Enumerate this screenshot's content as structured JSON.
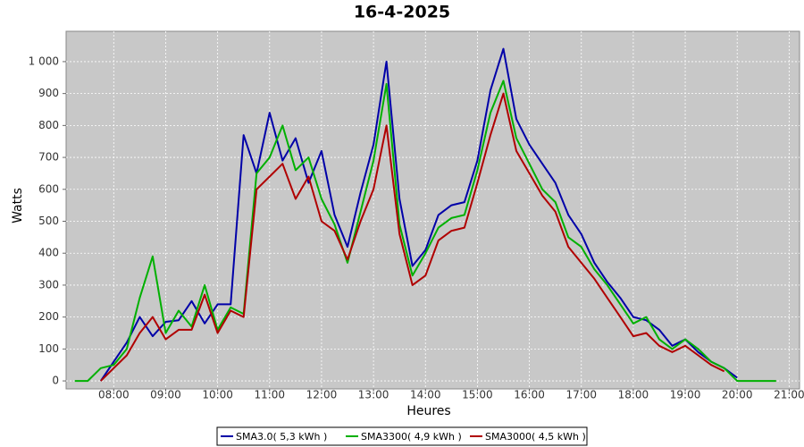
{
  "chart_data": {
    "type": "line",
    "title": "16-4-2025",
    "xlabel": "Heures",
    "ylabel": "Watts",
    "x": [
      "07:15",
      "07:30",
      "07:45",
      "08:00",
      "08:15",
      "08:30",
      "08:45",
      "09:00",
      "09:15",
      "09:30",
      "09:45",
      "10:00",
      "10:15",
      "10:30",
      "10:45",
      "11:00",
      "11:15",
      "11:30",
      "11:45",
      "12:00",
      "12:15",
      "12:30",
      "12:45",
      "13:00",
      "13:15",
      "13:30",
      "13:45",
      "14:00",
      "14:15",
      "14:30",
      "14:45",
      "15:00",
      "15:15",
      "15:30",
      "15:45",
      "16:00",
      "16:15",
      "16:30",
      "16:45",
      "17:00",
      "17:15",
      "17:30",
      "17:45",
      "18:00",
      "18:15",
      "18:30",
      "18:45",
      "19:00",
      "19:15",
      "19:30",
      "19:45",
      "20:00",
      "20:15",
      "20:30",
      "20:45"
    ],
    "series": [
      {
        "name": "SMA3.0( 5,3 kWh )",
        "color": "#0000a8",
        "values": [
          null,
          null,
          0,
          60,
          120,
          200,
          140,
          185,
          190,
          250,
          180,
          240,
          240,
          770,
          650,
          840,
          690,
          760,
          620,
          720,
          520,
          420,
          590,
          740,
          1000,
          570,
          360,
          410,
          520,
          550,
          560,
          690,
          910,
          1040,
          820,
          740,
          680,
          620,
          520,
          460,
          370,
          310,
          260,
          200,
          190,
          160,
          110,
          130,
          90,
          60,
          40,
          10,
          null,
          null,
          null
        ]
      },
      {
        "name": "SMA3300( 4,9 kWh )",
        "color": "#00b000",
        "values": [
          0,
          0,
          40,
          50,
          100,
          260,
          390,
          150,
          220,
          170,
          300,
          160,
          230,
          210,
          650,
          700,
          800,
          660,
          700,
          570,
          490,
          370,
          530,
          690,
          930,
          490,
          330,
          400,
          480,
          510,
          520,
          660,
          840,
          940,
          760,
          680,
          600,
          560,
          450,
          420,
          350,
          300,
          240,
          180,
          200,
          130,
          100,
          130,
          100,
          60,
          40,
          0,
          0,
          0,
          0
        ]
      },
      {
        "name": "SMA3000( 4,5 kWh )",
        "color": "#b00000",
        "values": [
          null,
          null,
          0,
          40,
          80,
          150,
          200,
          130,
          160,
          160,
          270,
          150,
          220,
          200,
          600,
          640,
          680,
          570,
          640,
          500,
          470,
          380,
          500,
          600,
          800,
          460,
          300,
          330,
          440,
          470,
          480,
          620,
          770,
          900,
          720,
          650,
          580,
          530,
          420,
          370,
          320,
          260,
          200,
          140,
          150,
          110,
          90,
          110,
          80,
          50,
          30,
          null,
          null,
          null,
          null
        ]
      }
    ],
    "xlim": [
      "07:05",
      "21:12"
    ],
    "xticks": [
      "08:00",
      "09:00",
      "10:00",
      "11:00",
      "12:00",
      "13:00",
      "14:00",
      "15:00",
      "16:00",
      "17:00",
      "18:00",
      "19:00",
      "20:00",
      "21:00"
    ],
    "ylim": [
      -25,
      1095
    ],
    "yticks": [
      0,
      100,
      200,
      300,
      400,
      500,
      600,
      700,
      800,
      900,
      {
        "value": 1000,
        "label": "1 000"
      }
    ],
    "grid": true
  }
}
